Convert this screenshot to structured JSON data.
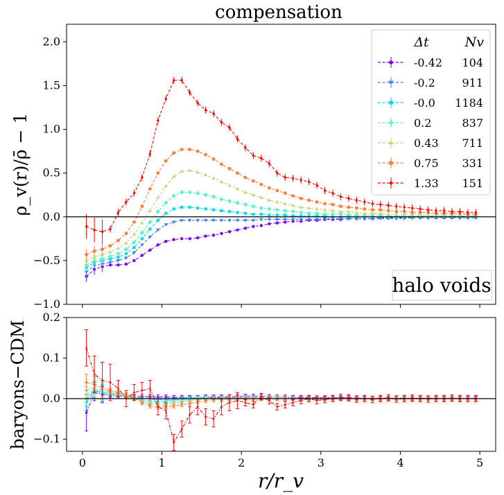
{
  "title": "compensation",
  "chart_data": [
    {
      "type": "line",
      "panel": "top",
      "title": "compensation",
      "xlabel": "r/r_v",
      "ylabel": "ρ_v(r)/ρ̄ − 1",
      "xlim": [
        -0.2,
        5.2
      ],
      "ylim": [
        -1.0,
        2.2
      ],
      "yticks": [
        -1.0,
        -0.5,
        0.0,
        0.5,
        1.0,
        1.5,
        2.0
      ],
      "ytick_labels": [
        "−1.0",
        "−0.5",
        "0.0",
        "0.5",
        "1.0",
        "1.5",
        "2.0"
      ],
      "annotation": "halo voids",
      "legend": {
        "position": "top-right",
        "header_delta": "Δt",
        "header_n": "Nv"
      },
      "series": [
        {
          "name": "-0.42",
          "n": "104",
          "color": "#8000ff",
          "marker": "circle",
          "values": [
            -0.68,
            -0.6,
            -0.57,
            -0.55,
            -0.55,
            -0.54,
            -0.5,
            -0.44,
            -0.38,
            -0.32,
            -0.28,
            -0.26,
            -0.25,
            -0.25,
            -0.24,
            -0.22,
            -0.21,
            -0.19,
            -0.17,
            -0.15,
            -0.13,
            -0.11,
            -0.1,
            -0.08,
            -0.07,
            -0.06,
            -0.05,
            -0.05,
            -0.04,
            -0.04,
            -0.03,
            -0.03,
            -0.03,
            -0.02,
            -0.02,
            -0.02,
            -0.02,
            -0.01,
            -0.01,
            -0.01,
            -0.01,
            -0.01,
            -0.01,
            -0.01,
            -0.01,
            -0.01,
            -0.01,
            -0.01,
            -0.01,
            -0.01
          ]
        },
        {
          "name": "-0.2",
          "n": "911",
          "color": "#3e7ff8",
          "marker": "triangle-down",
          "values": [
            -0.63,
            -0.56,
            -0.54,
            -0.52,
            -0.5,
            -0.47,
            -0.41,
            -0.32,
            -0.23,
            -0.15,
            -0.09,
            -0.06,
            -0.04,
            -0.04,
            -0.04,
            -0.04,
            -0.04,
            -0.04,
            -0.04,
            -0.04,
            -0.04,
            -0.04,
            -0.03,
            -0.03,
            -0.03,
            -0.03,
            -0.03,
            -0.03,
            -0.03,
            -0.03,
            -0.02,
            -0.02,
            -0.02,
            -0.02,
            -0.02,
            -0.02,
            -0.02,
            -0.02,
            -0.02,
            -0.02,
            -0.02,
            -0.01,
            -0.01,
            -0.01,
            -0.01,
            -0.01,
            -0.01,
            -0.01,
            -0.01,
            -0.01
          ]
        },
        {
          "name": "-0.0",
          "n": "1184",
          "color": "#0ad8e6",
          "marker": "square",
          "values": [
            -0.58,
            -0.52,
            -0.5,
            -0.48,
            -0.46,
            -0.42,
            -0.35,
            -0.25,
            -0.14,
            -0.04,
            0.04,
            0.09,
            0.11,
            0.11,
            0.1,
            0.09,
            0.08,
            0.07,
            0.06,
            0.05,
            0.04,
            0.03,
            0.03,
            0.02,
            0.02,
            0.02,
            0.01,
            0.01,
            0.01,
            0.01,
            0.01,
            0.0,
            0.0,
            0.0,
            0.0,
            0.0,
            0.0,
            0.0,
            0.0,
            0.0,
            0.0,
            0.0,
            0.0,
            0.0,
            0.0,
            0.0,
            0.0,
            0.0,
            0.0,
            0.0
          ]
        },
        {
          "name": "0.2",
          "n": "837",
          "color": "#59f2c3",
          "marker": "plus",
          "values": [
            -0.55,
            -0.5,
            -0.48,
            -0.45,
            -0.42,
            -0.37,
            -0.29,
            -0.18,
            -0.06,
            0.06,
            0.16,
            0.24,
            0.28,
            0.28,
            0.27,
            0.25,
            0.23,
            0.2,
            0.18,
            0.16,
            0.14,
            0.12,
            0.1,
            0.09,
            0.08,
            0.07,
            0.06,
            0.05,
            0.04,
            0.04,
            0.03,
            0.03,
            0.03,
            0.02,
            0.02,
            0.02,
            0.02,
            0.02,
            0.01,
            0.01,
            0.01,
            0.01,
            0.01,
            0.01,
            0.01,
            0.01,
            0.01,
            0.01,
            0.01,
            0.01
          ]
        },
        {
          "name": "0.43",
          "n": "711",
          "color": "#c4d77a",
          "marker": "triangle-up",
          "values": [
            -0.5,
            -0.46,
            -0.43,
            -0.4,
            -0.36,
            -0.3,
            -0.2,
            -0.07,
            0.07,
            0.22,
            0.35,
            0.46,
            0.52,
            0.53,
            0.51,
            0.48,
            0.44,
            0.4,
            0.36,
            0.32,
            0.28,
            0.25,
            0.22,
            0.19,
            0.17,
            0.15,
            0.13,
            0.11,
            0.1,
            0.09,
            0.08,
            0.07,
            0.06,
            0.06,
            0.05,
            0.04,
            0.04,
            0.04,
            0.03,
            0.03,
            0.03,
            0.03,
            0.02,
            0.02,
            0.02,
            0.02,
            0.02,
            0.02,
            0.02,
            0.02
          ]
        },
        {
          "name": "0.75",
          "n": "331",
          "color": "#ff7f3f",
          "marker": "pentagon",
          "values": [
            -0.43,
            -0.39,
            -0.37,
            -0.33,
            -0.27,
            -0.19,
            -0.06,
            0.12,
            0.32,
            0.5,
            0.64,
            0.73,
            0.77,
            0.77,
            0.75,
            0.71,
            0.66,
            0.6,
            0.55,
            0.5,
            0.45,
            0.41,
            0.37,
            0.33,
            0.3,
            0.27,
            0.24,
            0.21,
            0.19,
            0.17,
            0.15,
            0.14,
            0.12,
            0.11,
            0.1,
            0.09,
            0.08,
            0.08,
            0.07,
            0.06,
            0.06,
            0.05,
            0.05,
            0.05,
            0.04,
            0.04,
            0.04,
            0.04,
            0.03,
            0.03
          ]
        },
        {
          "name": "1.33",
          "n": "151",
          "color": "#ff0000",
          "marker": "diamond",
          "values": [
            -0.11,
            -0.15,
            -0.17,
            -0.14,
            0.05,
            0.17,
            0.27,
            0.45,
            0.72,
            1.1,
            1.35,
            1.56,
            1.56,
            1.42,
            1.3,
            1.22,
            1.18,
            1.08,
            1.02,
            0.89,
            0.79,
            0.7,
            0.67,
            0.61,
            0.5,
            0.45,
            0.44,
            0.42,
            0.4,
            0.36,
            0.3,
            0.27,
            0.23,
            0.21,
            0.19,
            0.17,
            0.15,
            0.14,
            0.13,
            0.12,
            0.11,
            0.1,
            0.09,
            0.08,
            0.07,
            0.07,
            0.06,
            0.06,
            0.05,
            0.05
          ]
        }
      ]
    },
    {
      "type": "line",
      "panel": "bottom",
      "xlabel": "r/r_v",
      "ylabel": "baryons−CDM",
      "xlim": [
        -0.2,
        5.2
      ],
      "ylim": [
        -0.13,
        0.2
      ],
      "xticks": [
        0,
        1,
        2,
        3,
        4,
        5
      ],
      "xtick_labels": [
        "0",
        "1",
        "2",
        "3",
        "4",
        "5"
      ],
      "yticks": [
        -0.1,
        0.0,
        0.1,
        0.2
      ],
      "ytick_labels": [
        "−0.1",
        "0.0",
        "0.1",
        "0.2"
      ],
      "series": [
        {
          "name": "-0.42",
          "values": [
            -0.035,
            0.015,
            0.01,
            0.008,
            0.005,
            0.006,
            0.005,
            0.005,
            0.004,
            0.004,
            0.004,
            0.003,
            0.003,
            0.003,
            0.003,
            0.004,
            0.004,
            0.004,
            0.005,
            0.005,
            0.006,
            0.006,
            0.005,
            0.005,
            0.004,
            0.004,
            0.003,
            0.003,
            0.003,
            0.002,
            0.002,
            0.002,
            0.002,
            0.002,
            0.002,
            0.001,
            0.001,
            0.001,
            0.001,
            0.001,
            0.001,
            0.001,
            0.001,
            0.001,
            0.001,
            0.001,
            0.001,
            0.001,
            0.001,
            0.001
          ]
        },
        {
          "name": "-0.2",
          "values": [
            -0.01,
            0.02,
            0.012,
            0.01,
            0.008,
            0.005,
            0.003,
            0.001,
            -0.001,
            -0.002,
            -0.002,
            -0.001,
            0.0,
            0.001,
            0.002,
            0.002,
            0.002,
            0.002,
            0.002,
            0.002,
            0.002,
            0.002,
            0.001,
            0.001,
            0.001,
            0.001,
            0.001,
            0.001,
            0.001,
            0.001,
            0.001,
            0.001,
            0.001,
            0.0,
            0.0,
            0.0,
            0.0,
            0.0,
            0.0,
            0.0,
            0.0,
            0.0,
            0.0,
            0.0,
            0.0,
            0.0,
            0.0,
            0.0,
            0.0,
            0.0
          ]
        },
        {
          "name": "-0.0",
          "values": [
            0.0,
            0.022,
            0.015,
            0.012,
            0.01,
            0.005,
            0.0,
            -0.004,
            -0.006,
            -0.007,
            -0.006,
            -0.004,
            -0.002,
            0.0,
            0.001,
            0.001,
            0.001,
            0.001,
            0.001,
            0.001,
            0.001,
            0.001,
            0.001,
            0.001,
            0.001,
            0.0,
            0.0,
            0.0,
            0.0,
            0.0,
            0.0,
            0.0,
            0.0,
            0.0,
            0.0,
            0.0,
            0.0,
            0.0,
            0.0,
            0.0,
            0.0,
            0.0,
            0.0,
            0.0,
            0.0,
            0.0,
            0.0,
            0.0,
            0.0,
            0.0
          ]
        },
        {
          "name": "0.2",
          "values": [
            0.01,
            0.025,
            0.018,
            0.015,
            0.012,
            0.006,
            0.0,
            -0.006,
            -0.01,
            -0.012,
            -0.011,
            -0.008,
            -0.005,
            -0.003,
            -0.001,
            0.0,
            0.0,
            0.0,
            0.001,
            0.001,
            0.001,
            0.001,
            0.001,
            0.001,
            0.001,
            0.0,
            0.0,
            0.0,
            0.0,
            0.0,
            0.0,
            0.0,
            0.0,
            0.0,
            0.0,
            0.0,
            0.0,
            0.0,
            0.0,
            0.0,
            0.0,
            0.0,
            0.0,
            0.0,
            0.0,
            0.0,
            0.0,
            0.0,
            0.0,
            0.0
          ]
        },
        {
          "name": "0.43",
          "values": [
            0.02,
            0.03,
            0.02,
            0.018,
            0.015,
            0.008,
            0.0,
            -0.008,
            -0.013,
            -0.016,
            -0.015,
            -0.012,
            -0.009,
            -0.006,
            -0.003,
            -0.001,
            0.0,
            0.0,
            0.001,
            0.001,
            0.001,
            0.001,
            0.0,
            0.0,
            0.0,
            0.0,
            0.0,
            0.0,
            0.0,
            0.0,
            0.0,
            0.0,
            0.0,
            0.0,
            0.0,
            0.0,
            0.0,
            0.0,
            0.0,
            0.0,
            0.0,
            0.0,
            0.0,
            0.0,
            0.0,
            0.0,
            0.0,
            0.0,
            0.0,
            0.0
          ]
        },
        {
          "name": "0.75",
          "values": [
            0.04,
            0.035,
            0.025,
            0.02,
            0.015,
            0.01,
            0.002,
            -0.01,
            -0.018,
            -0.021,
            -0.02,
            -0.018,
            -0.015,
            -0.012,
            -0.008,
            -0.005,
            -0.003,
            -0.002,
            -0.001,
            0.0,
            0.0,
            0.0,
            0.0,
            0.0,
            0.0,
            0.0,
            0.0,
            0.0,
            0.0,
            0.0,
            0.0,
            0.0,
            0.0,
            0.0,
            0.0,
            0.0,
            0.0,
            0.0,
            0.0,
            0.0,
            0.0,
            0.0,
            0.0,
            0.0,
            0.0,
            0.0,
            0.0,
            0.0,
            0.0,
            0.0
          ]
        },
        {
          "name": "1.33",
          "values": [
            0.125,
            0.06,
            0.045,
            0.04,
            0.025,
            0.0,
            0.015,
            0.02,
            0.025,
            -0.02,
            -0.03,
            -0.108,
            -0.075,
            -0.04,
            -0.02,
            -0.045,
            -0.05,
            -0.02,
            -0.01,
            -0.005,
            -0.01,
            -0.015,
            0.005,
            -0.005,
            -0.02,
            -0.015,
            -0.01,
            -0.005,
            0.0,
            -0.005,
            -0.002,
            0.0,
            0.003,
            0.002,
            -0.001,
            0.0,
            -0.002,
            0.0,
            0.002,
            -0.001,
            0.0,
            0.001,
            0.0,
            -0.001,
            0.0,
            0.0,
            0.001,
            0.0,
            0.0,
            0.0
          ]
        }
      ]
    }
  ]
}
